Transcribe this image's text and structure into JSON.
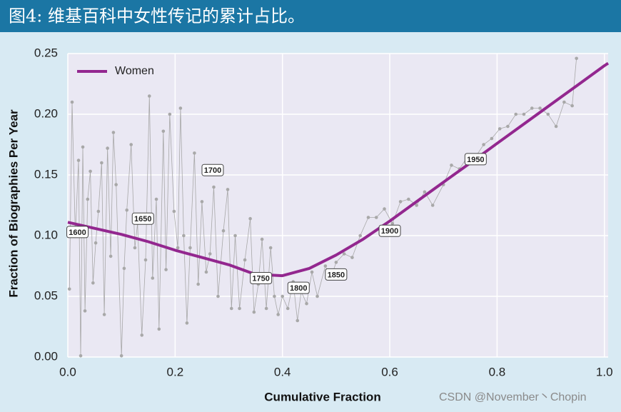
{
  "chart_data": {
    "type": "line",
    "title": "图4: 维基百科中女性传记的累计占比。",
    "xlabel": "Cumulative Fraction",
    "ylabel": "Fraction of Biographies Per Year",
    "watermark": "CSDN @November丶Chopin",
    "xlim": [
      0,
      1.007
    ],
    "ylim": [
      0,
      0.25
    ],
    "xticks": [
      {
        "value": 0,
        "label": "0.0"
      },
      {
        "value": 0.2,
        "label": "0.2"
      },
      {
        "value": 0.4,
        "label": "0.4"
      },
      {
        "value": 0.6,
        "label": "0.6"
      },
      {
        "value": 0.8,
        "label": "0.8"
      },
      {
        "value": 1,
        "label": "1.0"
      }
    ],
    "yticks": [
      {
        "value": 0,
        "label": "0.00"
      },
      {
        "value": 0.05,
        "label": "0.05"
      },
      {
        "value": 0.1,
        "label": "0.10"
      },
      {
        "value": 0.15,
        "label": "0.15"
      },
      {
        "value": 0.2,
        "label": "0.20"
      },
      {
        "value": 0.25,
        "label": "0.25"
      }
    ],
    "grid": true,
    "legend": "upper left",
    "series": [
      {
        "name": "Women",
        "color": "#93278f",
        "x": [
          0,
          0.05,
          0.1,
          0.15,
          0.2,
          0.25,
          0.3,
          0.35,
          0.4,
          0.45,
          0.5,
          0.55,
          0.6,
          0.65,
          0.7,
          0.76,
          0.8,
          0.85,
          0.9,
          0.95,
          1.0,
          1.007
        ],
        "values": [
          0.111,
          0.106,
          0.101,
          0.095,
          0.088,
          0.082,
          0.076,
          0.068,
          0.067,
          0.073,
          0.084,
          0.097,
          0.112,
          0.128,
          0.144,
          0.163,
          0.176,
          0.192,
          0.208,
          0.224,
          0.24,
          0.242
        ]
      }
    ],
    "points": {
      "color": "#a8a8a8",
      "x": [
        0.003,
        0.008,
        0.014,
        0.02,
        0.024,
        0.028,
        0.032,
        0.037,
        0.042,
        0.047,
        0.052,
        0.057,
        0.063,
        0.068,
        0.074,
        0.08,
        0.085,
        0.09,
        0.1,
        0.105,
        0.11,
        0.118,
        0.125,
        0.13,
        0.138,
        0.145,
        0.152,
        0.158,
        0.165,
        0.17,
        0.178,
        0.183,
        0.19,
        0.198,
        0.205,
        0.21,
        0.216,
        0.222,
        0.228,
        0.236,
        0.243,
        0.25,
        0.258,
        0.265,
        0.272,
        0.28,
        0.29,
        0.298,
        0.305,
        0.312,
        0.32,
        0.33,
        0.34,
        0.347,
        0.355,
        0.362,
        0.37,
        0.378,
        0.385,
        0.392,
        0.4,
        0.41,
        0.42,
        0.428,
        0.435,
        0.445,
        0.455,
        0.465,
        0.48,
        0.49,
        0.5,
        0.515,
        0.53,
        0.545,
        0.56,
        0.575,
        0.59,
        0.605,
        0.62,
        0.635,
        0.65,
        0.665,
        0.68,
        0.7,
        0.715,
        0.73,
        0.745,
        0.76,
        0.775,
        0.79,
        0.805,
        0.82,
        0.835,
        0.85,
        0.865,
        0.88,
        0.895,
        0.91,
        0.925,
        0.94,
        0.948
      ],
      "values": [
        0.056,
        0.21,
        0.1,
        0.162,
        0.001,
        0.173,
        0.038,
        0.13,
        0.153,
        0.061,
        0.094,
        0.12,
        0.16,
        0.035,
        0.172,
        0.083,
        0.185,
        0.142,
        0.001,
        0.073,
        0.121,
        0.175,
        0.09,
        0.11,
        0.018,
        0.08,
        0.215,
        0.065,
        0.13,
        0.023,
        0.186,
        0.072,
        0.2,
        0.12,
        0.09,
        0.205,
        0.1,
        0.028,
        0.09,
        0.168,
        0.06,
        0.128,
        0.07,
        0.085,
        0.14,
        0.05,
        0.104,
        0.138,
        0.04,
        0.1,
        0.04,
        0.08,
        0.114,
        0.037,
        0.06,
        0.097,
        0.04,
        0.09,
        0.05,
        0.035,
        0.05,
        0.04,
        0.062,
        0.03,
        0.054,
        0.044,
        0.07,
        0.05,
        0.075,
        0.065,
        0.078,
        0.085,
        0.082,
        0.1,
        0.115,
        0.115,
        0.122,
        0.11,
        0.128,
        0.13,
        0.125,
        0.136,
        0.125,
        0.142,
        0.158,
        0.155,
        0.165,
        0.165,
        0.175,
        0.18,
        0.188,
        0.19,
        0.2,
        0.2,
        0.205,
        0.205,
        0.2,
        0.19,
        0.21,
        0.207,
        0.246
      ]
    },
    "annotations": [
      {
        "text": "1600",
        "x": 0.018,
        "y": 0.103
      },
      {
        "text": "1650",
        "x": 0.14,
        "y": 0.114
      },
      {
        "text": "1700",
        "x": 0.27,
        "y": 0.154
      },
      {
        "text": "1750",
        "x": 0.36,
        "y": 0.065
      },
      {
        "text": "1800",
        "x": 0.43,
        "y": 0.057
      },
      {
        "text": "1850",
        "x": 0.5,
        "y": 0.068
      },
      {
        "text": "1900",
        "x": 0.6,
        "y": 0.104
      },
      {
        "text": "1950",
        "x": 0.76,
        "y": 0.163
      }
    ]
  }
}
